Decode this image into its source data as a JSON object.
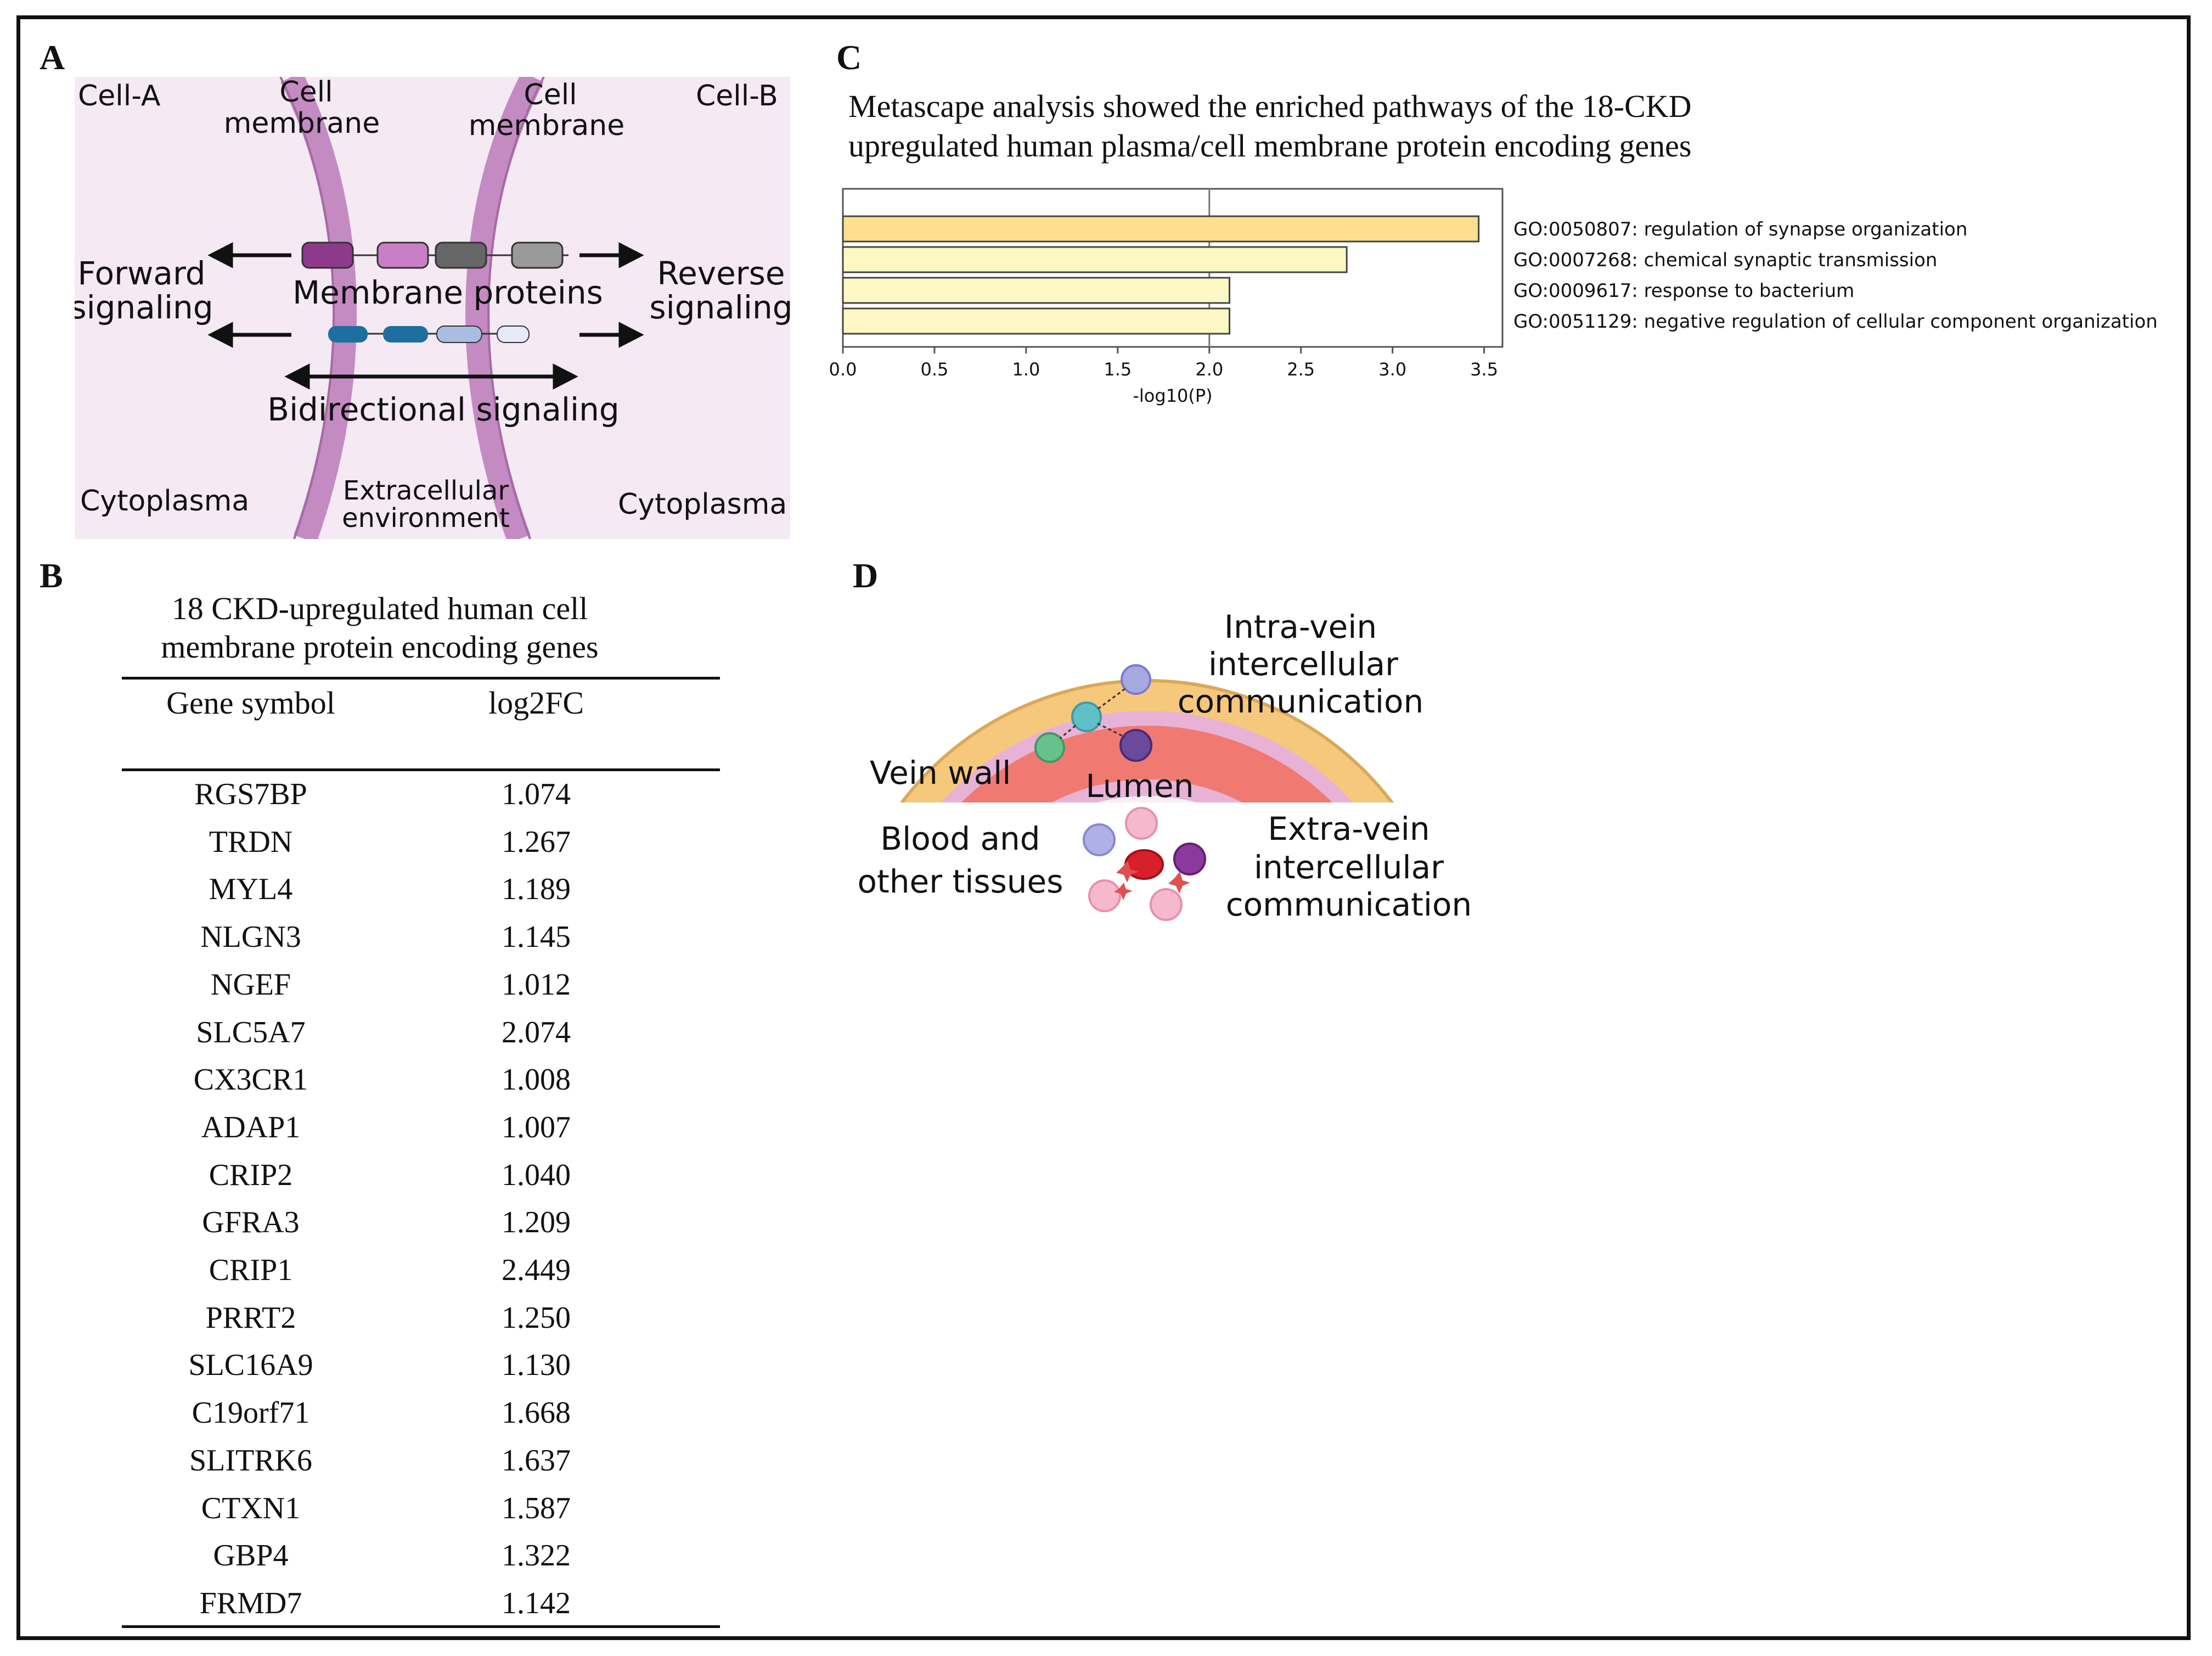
{
  "panels": {
    "a": "A",
    "b": "B",
    "c": "C",
    "d": "D"
  },
  "panel_a": {
    "cell_a": "Cell-A",
    "cell_b": "Cell-B",
    "membrane_left": [
      "Cell",
      "membrane"
    ],
    "membrane_right": [
      "Cell",
      "membrane"
    ],
    "forward": [
      "Forward",
      "signaling"
    ],
    "reverse": [
      "Reverse",
      "signaling"
    ],
    "membrane_proteins": "Membrane proteins",
    "bidirectional": "Bidirectional signaling",
    "cytoplasma_left": "Cytoplasma",
    "cytoplasma_right": "Cytoplasma",
    "extracellular": [
      "Extracellular",
      "environment"
    ],
    "colors": {
      "background": "#f5e9f4",
      "membrane": "#c48ac2",
      "protein1": "#8e3a8c",
      "protein2": "#c97fc8",
      "protein3": "#666666",
      "protein4": "#999999",
      "protein5": "#1d6fa0",
      "protein6": "#a9bde0"
    }
  },
  "panel_b": {
    "title": [
      "18 CKD-upregulated human cell",
      "membrane protein encoding genes"
    ],
    "col_gene": "Gene symbol",
    "col_fc": "log2FC",
    "rows": [
      {
        "gene": "RGS7BP",
        "fc": "1.074"
      },
      {
        "gene": "TRDN",
        "fc": "1.267"
      },
      {
        "gene": "MYL4",
        "fc": "1.189"
      },
      {
        "gene": "NLGN3",
        "fc": "1.145"
      },
      {
        "gene": "NGEF",
        "fc": "1.012"
      },
      {
        "gene": "SLC5A7",
        "fc": "2.074"
      },
      {
        "gene": "CX3CR1",
        "fc": "1.008"
      },
      {
        "gene": "ADAP1",
        "fc": "1.007"
      },
      {
        "gene": "CRIP2",
        "fc": "1.040"
      },
      {
        "gene": "GFRA3",
        "fc": "1.209"
      },
      {
        "gene": "CRIP1",
        "fc": "2.449"
      },
      {
        "gene": "PRRT2",
        "fc": "1.250"
      },
      {
        "gene": "SLC16A9",
        "fc": "1.130"
      },
      {
        "gene": "C19orf71",
        "fc": "1.668"
      },
      {
        "gene": "SLITRK6",
        "fc": "1.637"
      },
      {
        "gene": "CTXN1",
        "fc": "1.587"
      },
      {
        "gene": "GBP4",
        "fc": "1.322"
      },
      {
        "gene": "FRMD7",
        "fc": "1.142"
      }
    ]
  },
  "chart_data": {
    "type": "bar",
    "orientation": "horizontal",
    "title": "Metascape analysis showed the enriched pathways of the 18-CKD upregulated human plasma/cell membrane protein encoding genes",
    "title_lines": [
      "Metascape analysis showed the enriched pathways of the 18-CKD",
      "upregulated human plasma/cell membrane protein encoding genes"
    ],
    "xlabel": "-log10(P)",
    "ylabel": "",
    "xlim": [
      0,
      3.6
    ],
    "xticks": [
      "0.0",
      "0.5",
      "1.0",
      "1.5",
      "2.0",
      "2.5",
      "3.0",
      "3.5"
    ],
    "reference_line": 2.0,
    "categories": [
      "GO:0050807: regulation of synapse organization",
      "GO:0007268: chemical synaptic transmission",
      "GO:0009617: response to bacterium",
      "GO:0051129: negative regulation of cellular component organization"
    ],
    "values": [
      3.47,
      2.75,
      2.11,
      2.11
    ],
    "colors": [
      "#fddf8f",
      "#fdf7c4",
      "#fdf7c4",
      "#fdf7c4"
    ]
  },
  "panel_d": {
    "intra": [
      "Intra-vein",
      "intercellular",
      "communication"
    ],
    "vein_wall": "Vein wall",
    "lumen": "Lumen",
    "blood": [
      "Blood and",
      "other tissues"
    ],
    "extra": [
      "Extra-vein",
      "intercellular",
      "communication"
    ]
  }
}
